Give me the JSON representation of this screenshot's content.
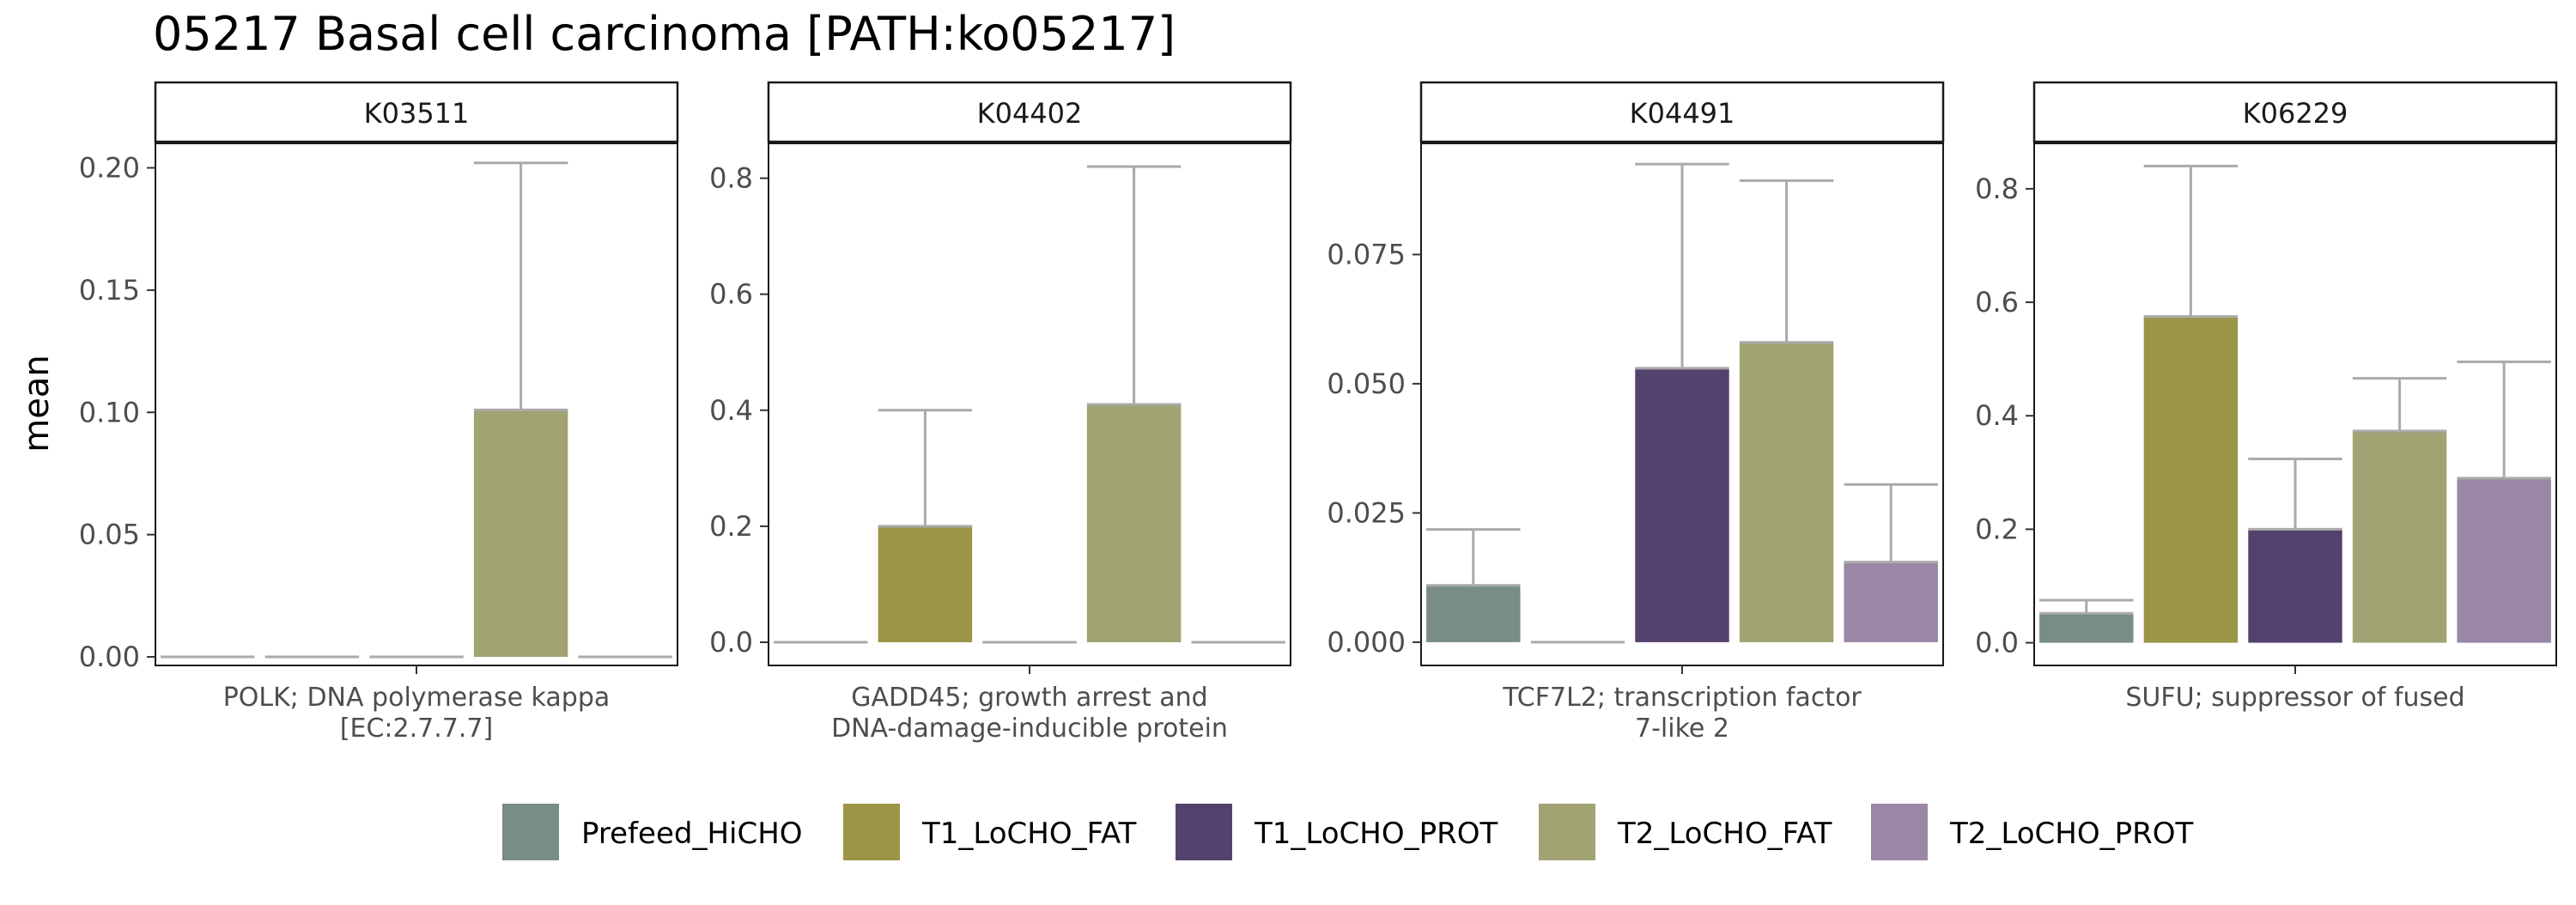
{
  "chart_data": {
    "type": "bar",
    "title": "05217 Basal cell carcinoma [PATH:ko05217]",
    "ylabel": "mean",
    "xlabel": "",
    "grid": false,
    "legend_position": "bottom",
    "groups": [
      "Prefeed_HiCHO",
      "T1_LoCHO_FAT",
      "T1_LoCHO_PROT",
      "T2_LoCHO_FAT",
      "T2_LoCHO_PROT"
    ],
    "colors": {
      "Prefeed_HiCHO": "#778d85",
      "T1_LoCHO_FAT": "#9c9447",
      "T1_LoCHO_PROT": "#54426e",
      "T2_LoCHO_FAT": "#a1a373",
      "T2_LoCHO_PROT": "#9a86a5"
    },
    "error_bar_color": "#aaaaaa",
    "panels": [
      {
        "strip": "K03511",
        "caption": [
          "POLK; DNA polymerase kappa",
          "[EC:2.7.7.7]"
        ],
        "ylim": [
          -0.0035,
          0.21
        ],
        "yticks": [
          0,
          0.05,
          0.1,
          0.15,
          0.2
        ],
        "ytick_labels": [
          "0.00",
          "0.05",
          "0.10",
          "0.15",
          "0.20"
        ],
        "values": [
          0,
          0,
          0,
          0.101,
          0
        ],
        "errors_upper": [
          0,
          0,
          0,
          0.202,
          0
        ]
      },
      {
        "strip": "K04402",
        "caption": [
          "GADD45; growth arrest and",
          "DNA-damage-inducible protein"
        ],
        "ylim": [
          -0.04,
          0.86
        ],
        "yticks": [
          0,
          0.2,
          0.4,
          0.6,
          0.8
        ],
        "ytick_labels": [
          "0.0",
          "0.2",
          "0.4",
          "0.6",
          "0.8"
        ],
        "values": [
          0,
          0.2,
          0,
          0.41,
          0
        ],
        "errors_upper": [
          0,
          0.4,
          0,
          0.82,
          0
        ]
      },
      {
        "strip": "K04491",
        "caption": [
          "TCF7L2; transcription factor",
          "7-like 2"
        ],
        "ylim": [
          -0.0045,
          0.0965
        ],
        "yticks": [
          0,
          0.025,
          0.05,
          0.075
        ],
        "ytick_labels": [
          "0.000",
          "0.025",
          "0.050",
          "0.075"
        ],
        "values": [
          0.011,
          0,
          0.053,
          0.058,
          0.0155
        ],
        "errors_upper": [
          0.0218,
          0,
          0.0925,
          0.0893,
          0.0305
        ]
      },
      {
        "strip": "K06229",
        "caption": [
          "SUFU; suppressor of fused"
        ],
        "ylim": [
          -0.04,
          0.88
        ],
        "yticks": [
          0,
          0.2,
          0.4,
          0.6,
          0.8
        ],
        "ytick_labels": [
          "0.0",
          "0.2",
          "0.4",
          "0.6",
          "0.8"
        ],
        "values": [
          0.052,
          0.575,
          0.2,
          0.373,
          0.29
        ],
        "errors_upper": [
          0.075,
          0.84,
          0.324,
          0.466,
          0.495
        ]
      }
    ]
  }
}
